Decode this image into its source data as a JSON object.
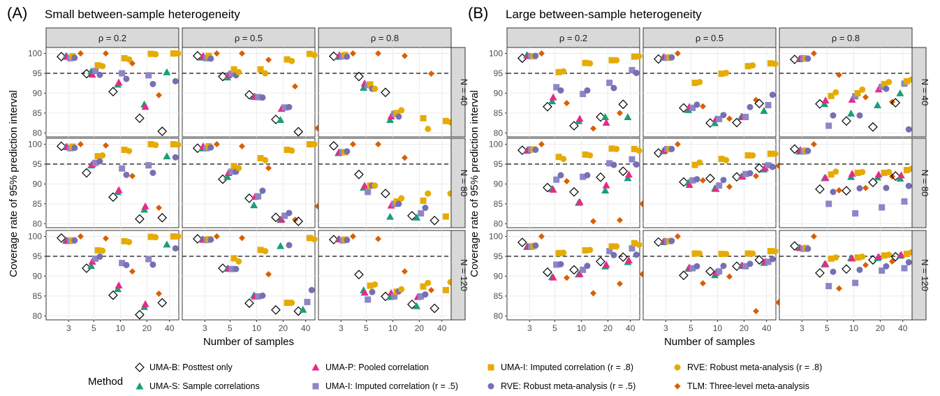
{
  "chart_data": {
    "type": "scatter",
    "panels": [
      {
        "label": "(A)",
        "title": "Small between-sample heterogeneity"
      },
      {
        "label": "(B)",
        "title": "Large between-sample heterogeneity"
      }
    ],
    "facet_columns": [
      "ρ = 0.2",
      "ρ = 0.5",
      "ρ = 0.8"
    ],
    "facet_rows": [
      "N = 40",
      "N = 80",
      "N = 120"
    ],
    "xlabel": "Number of samples",
    "ylabel": "Coverage rate of 95% prediction interval",
    "x_ticks": [
      "3",
      "5",
      "10",
      "20",
      "40"
    ],
    "x_scale": "log",
    "ylim": [
      79,
      101.5
    ],
    "y_ticks": [
      80,
      85,
      90,
      95,
      100
    ],
    "reference_line": 95,
    "grid": true,
    "legend_title": "Method",
    "legend_position": "bottom",
    "series": [
      {
        "name": "UMA-B: Posttest only",
        "shape": "diamond-open",
        "color": "#000000"
      },
      {
        "name": "UMA-S: Sample correlations",
        "shape": "triangle",
        "color": "#1b9e77"
      },
      {
        "name": "UMA-P: Pooled correlation",
        "shape": "triangle",
        "color": "#e7298a"
      },
      {
        "name": "UMA-I: Imputed correlation (r = .5)",
        "shape": "square",
        "color": "#8c86c8"
      },
      {
        "name": "UMA-I: Imputed correlation (r = .8)",
        "shape": "square",
        "color": "#e6ab02"
      },
      {
        "name": "RVE: Robust meta-analysis (r = .5)",
        "shape": "circle",
        "color": "#7570b3"
      },
      {
        "name": "RVE: Robust meta-analysis (r = .8)",
        "shape": "circle",
        "color": "#e6ab02"
      },
      {
        "name": "TLM: Three-level meta-analysis",
        "shape": "diamond",
        "color": "#d95f02"
      }
    ],
    "k_values": [
      3,
      5,
      10,
      20,
      40
    ],
    "cells": {
      "A": [
        [
          [
            [
              99.2,
              99.4,
              99.2,
              98.8,
              99.3,
              98.9,
              100.0
            ],
            [
              94.9,
              95.5,
              94.7,
              95.6,
              97.0,
              94.6,
              96.8,
              100.0
            ],
            [
              90.4,
              92.2,
              92.7,
              95.0,
              98.8,
              93.6,
              98.5,
              97.5
            ],
            [
              83.7,
              87.2,
              86.6,
              94.5,
              99.9,
              92.3,
              99.8,
              89.5
            ],
            [
              80.4,
              95.3,
              100.0,
              93.0,
              100.0
            ]
          ],
          [
            [
              99.4,
              99.0,
              99.4,
              98.8,
              99.4,
              98.7,
              100.0
            ],
            [
              94.2,
              94.0,
              94.6,
              94.9,
              96.0,
              94.5,
              95.3,
              100.0
            ],
            [
              89.6,
              89.1,
              89.1,
              89.0,
              96.0,
              88.9,
              95.0,
              98.4
            ],
            [
              83.4,
              83.3,
              86.1,
              86.4,
              98.5,
              86.5,
              98.1,
              91.7
            ],
            [
              80.3,
              99.9,
              99.6,
              81.2
            ]
          ],
          [
            [
              99.3,
              99.2,
              99.6,
              99.3,
              99.6,
              99.2,
              100.0
            ],
            [
              94.2,
              91.4,
              92.5,
              92.0,
              92.2,
              91.1,
              91.1,
              100.0
            ],
            [
              90.2,
              83.3,
              84.2,
              84.8,
              85.0,
              84.1,
              85.7,
              99.4
            ],
            [
              83.7,
              81.0,
              94.9
            ],
            [
              83.0,
              82.7,
              82.8
            ]
          ]
        ],
        [
          [
            [
              99.5,
              99.3,
              99.4,
              99.0,
              99.4,
              99.1,
              100.0
            ],
            [
              92.8,
              94.7,
              95.0,
              95.3,
              97.0,
              95.7,
              97.2,
              99.7
            ],
            [
              86.7,
              88.0,
              88.5,
              93.9,
              98.6,
              92.3,
              98.3,
              92.0
            ],
            [
              81.2,
              83.6,
              84.4,
              94.7,
              100.0,
              92.8,
              99.8,
              84.0
            ],
            [
              81.5,
              97.0,
              100.0,
              96.7,
              99.9
            ]
          ],
          [
            [
              99.0,
              99.0,
              99.5,
              99.0,
              99.5,
              99.2,
              100.0
            ],
            [
              91.2,
              91.8,
              92.8,
              93.1,
              94.5,
              93.1,
              94.0,
              99.5
            ],
            [
              86.4,
              84.7,
              86.8,
              86.9,
              96.5,
              88.3,
              96.0,
              94.0
            ],
            [
              81.6,
              81.0,
              81.1,
              82.0,
              98.6,
              82.7,
              98.4,
              81.0
            ],
            [
              80.6,
              100.0,
              100.0,
              84.4
            ]
          ],
          [
            [
              99.6,
              97.8,
              98.0,
              98.0,
              98.0,
              98.2,
              100.0
            ],
            [
              92.4,
              89.1,
              89.6,
              88.0,
              89.6,
              89.6,
              89.6,
              100.0
            ],
            [
              87.6,
              81.8,
              84.6,
              85.0,
              85.6,
              85.0,
              86.4,
              96.6
            ],
            [
              82.0,
              81.6,
              82.6,
              85.8,
              84.0,
              87.6
            ],
            [
              80.8,
              81.8,
              87.6,
              90.0
            ]
          ]
        ],
        [
          [
            [
              99.6,
              99.0,
              98.9,
              98.9,
              99.0,
              99.0,
              100.0
            ],
            [
              92.0,
              92.6,
              93.7,
              94.4,
              96.5,
              94.9,
              96.4,
              99.5
            ],
            [
              85.2,
              86.8,
              87.7,
              93.3,
              98.8,
              92.8,
              98.6,
              91.2
            ],
            [
              80.3,
              82.3,
              83.0,
              94.3,
              99.9,
              92.9,
              99.8,
              85.6
            ],
            [
              83.3,
              98.0,
              100.0,
              97.0,
              100.0
            ]
          ],
          [
            [
              99.4,
              99.3,
              99.2,
              99.1,
              99.3,
              99.2,
              100.0
            ],
            [
              92.0,
              91.9,
              91.9,
              91.8,
              94.5,
              91.8,
              93.7,
              99.6
            ],
            [
              83.2,
              85.2,
              84.9,
              84.9,
              96.6,
              85.1,
              96.3,
              90.5
            ],
            [
              81.5,
              97.6,
              83.3,
              97.8,
              83.3
            ],
            [
              81.2,
              81.6,
              83.5,
              99.6,
              86.5,
              99.3
            ]
          ],
          [
            [
              99.2,
              99.3,
              99.3,
              99.0,
              99.2,
              99.1,
              100.0
            ],
            [
              90.4,
              86.5,
              85.9,
              84.1,
              87.6,
              86.0,
              87.9,
              99.4
            ],
            [
              84.9,
              84.8,
              85.8,
              84.9,
              86.1,
              86.2,
              86.7,
              91.2
            ],
            [
              82.9,
              82.5,
              84.8,
              84.9,
              87.4,
              85.4,
              88.3,
              86.5
            ],
            [
              81.9,
              86.5,
              88.5,
              92.4
            ]
          ]
        ]
      ],
      "B": [
        [
          [
            [
              98.8,
              99.6,
              99.4,
              99.3,
              99.3,
              99.4,
              100.0
            ],
            [
              86.6,
              88.0,
              89.0,
              91.5,
              95.3,
              90.7,
              95.5,
              87.5
            ],
            [
              81.8,
              83.0,
              83.6,
              89.8,
              97.6,
              90.7,
              97.5,
              81.1
            ],
            [
              84.0,
              84.0,
              82.6,
              92.6,
              98.3,
              91.3,
              98.3,
              85.0
            ],
            [
              87.2,
              84.0,
              95.8,
              99.2,
              95.1,
              99.3
            ]
          ],
          [
            [
              98.6,
              99.0,
              99.1,
              98.9,
              99.0,
              99.0,
              100.0
            ],
            [
              86.3,
              85.8,
              86.6,
              86.3,
              92.6,
              87.1,
              92.8,
              86.7
            ],
            [
              82.5,
              82.5,
              83.5,
              83.5,
              94.9,
              84.5,
              95.1,
              83.6
            ],
            [
              82.6,
              84.1,
              84.0,
              84.0,
              96.8,
              86.5,
              97.0,
              88.3
            ],
            [
              87.4,
              85.6,
              87.0,
              97.5,
              89.6,
              97.4
            ]
          ],
          [
            [
              98.5,
              98.6,
              98.7,
              98.8,
              98.7,
              98.7,
              100.0
            ],
            [
              87.3,
              87.3,
              88.2,
              81.8,
              89.3,
              84.4,
              90.2,
              94.6
            ],
            [
              83.0,
              84.9,
              88.4,
              89.2,
              90.0,
              84.4,
              90.9,
              89.0
            ],
            [
              81.5,
              87.0,
              91.0,
              91.6,
              92.3,
              91.1,
              92.8,
              87.8
            ],
            [
              87.6,
              90.0,
              92.4,
              93.0,
              80.9,
              93.4
            ]
          ]
        ],
        [
          [
            [
              98.5,
              98.4,
              98.6,
              98.7,
              98.7,
              98.6,
              100.0
            ],
            [
              89.1,
              88.8,
              88.6,
              91.1,
              96.8,
              92.2,
              96.3,
              90.7
            ],
            [
              88.0,
              85.3,
              85.5,
              91.8,
              97.4,
              92.2,
              97.2,
              80.6
            ],
            [
              91.7,
              88.4,
              89.7,
              95.2,
              98.9,
              94.8,
              98.8,
              80.9
            ],
            [
              93.2,
              91.5,
              92.4,
              96.2,
              98.8,
              94.9,
              98.4,
              85.0
            ]
          ],
          [
            [
              97.8,
              98.3,
              98.5,
              98.8,
              98.8,
              98.8,
              100.0
            ],
            [
              90.5,
              90.4,
              89.8,
              90.9,
              94.8,
              91.2,
              95.4,
              90.9
            ],
            [
              91.4,
              88.9,
              88.8,
              89.6,
              96.3,
              91.0,
              96.0,
              89.3
            ],
            [
              91.8,
              91.9,
              91.9,
              92.5,
              97.2,
              92.7,
              97.2,
              92.0
            ],
            [
              94.0,
              93.7,
              94.1,
              94.7,
              97.6,
              94.3,
              97.6,
              94.6
            ]
          ],
          [
            [
              98.8,
              98.2,
              98.6,
              98.2,
              98.4,
              98.3,
              100.0
            ],
            [
              88.7,
              91.5,
              91.6,
              85.0,
              92.4,
              88.0,
              93.1,
              88.4
            ],
            [
              88.3,
              91.8,
              92.6,
              82.6,
              92.8,
              88.9,
              93.0,
              89.0
            ],
            [
              90.4,
              91.7,
              92.4,
              84.1,
              92.8,
              89.0,
              93.0,
              91.9
            ],
            [
              92.0,
              91.4,
              92.2,
              85.6,
              93.5,
              89.5,
              93.8,
              92.2
            ]
          ]
        ],
        [
          [
            [
              98.5,
              97.4,
              97.5,
              97.4,
              97.6,
              97.7,
              100.0
            ],
            [
              91.0,
              89.8,
              89.7,
              92.9,
              95.8,
              93.0,
              95.9,
              89.6
            ],
            [
              91.6,
              90.5,
              90.6,
              91.6,
              96.5,
              92.6,
              96.6,
              85.7
            ],
            [
              93.7,
              92.5,
              92.9,
              96.3,
              97.5,
              95.3,
              97.5,
              88.1
            ],
            [
              94.8,
              93.6,
              94.0,
              97.0,
              98.3,
              95.4,
              97.9,
              90.5
            ]
          ],
          [
            [
              98.6,
              98.6,
              98.8,
              98.8,
              98.8,
              98.9,
              100.0
            ],
            [
              90.2,
              91.9,
              92.2,
              92.0,
              95.7,
              92.5,
              95.7,
              88.2
            ],
            [
              91.2,
              90.3,
              90.9,
              91.2,
              95.6,
              92.6,
              95.6,
              89.9
            ],
            [
              92.5,
              92.6,
              92.7,
              92.5,
              95.7,
              93.1,
              95.7,
              81.2
            ],
            [
              94.1,
              93.4,
              93.7,
              93.6,
              96.3,
              94.3,
              96.3,
              83.4
            ]
          ],
          [
            [
              97.6,
              97.2,
              97.1,
              96.9,
              97.1,
              96.9,
              100.0
            ],
            [
              90.8,
              93.0,
              93.1,
              87.5,
              94.4,
              91.1,
              94.7,
              86.9
            ],
            [
              91.8,
              94.6,
              94.5,
              88.3,
              94.7,
              91.6,
              94.9,
              92.8
            ],
            [
              94.1,
              94.6,
              94.9,
              91.4,
              95.2,
              92.5,
              95.4,
              93.7
            ],
            [
              94.9,
              95.2,
              95.4,
              92.0,
              95.6,
              93.5,
              96.0,
              95.0
            ]
          ]
        ]
      ]
    }
  }
}
